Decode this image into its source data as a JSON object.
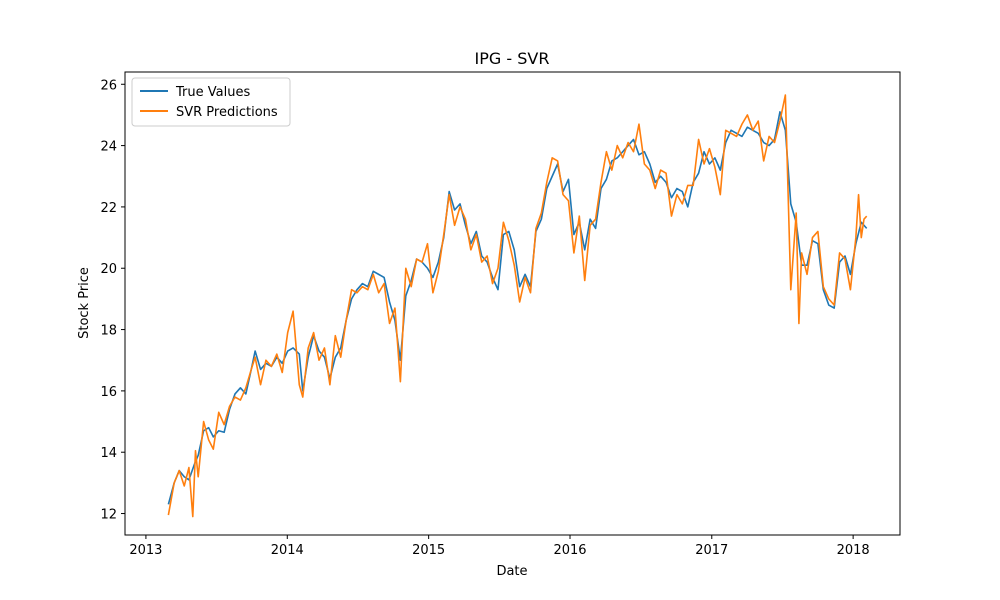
{
  "chart_data": {
    "type": "line",
    "title": "IPG - SVR",
    "xlabel": "Date",
    "ylabel": "Stock Price",
    "x_ticks": [
      "2013",
      "2014",
      "2015",
      "2016",
      "2017",
      "2018"
    ],
    "y_ticks": [
      "12",
      "14",
      "16",
      "18",
      "20",
      "22",
      "24",
      "26"
    ],
    "xlim": [
      "2012-11-08",
      "2018-05-02"
    ],
    "ylim": [
      11.3,
      26.4
    ],
    "grid": false,
    "legend_position": "top-left",
    "colors": {
      "true_values": "#1f77b4",
      "svr_predictions": "#ff7f0e"
    },
    "series": [
      {
        "name": "True Values",
        "points": [
          [
            "2013-02-28",
            12.3
          ],
          [
            "2013-03-15",
            13.0
          ],
          [
            "2013-03-28",
            13.4
          ],
          [
            "2013-04-10",
            13.2
          ],
          [
            "2013-04-22",
            13.1
          ],
          [
            "2013-05-06",
            13.6
          ],
          [
            "2013-05-16",
            13.9
          ],
          [
            "2013-05-30",
            14.7
          ],
          [
            "2013-06-12",
            14.8
          ],
          [
            "2013-06-24",
            14.5
          ],
          [
            "2013-07-08",
            14.7
          ],
          [
            "2013-07-22",
            14.65
          ],
          [
            "2013-08-05",
            15.4
          ],
          [
            "2013-08-19",
            15.9
          ],
          [
            "2013-09-02",
            16.1
          ],
          [
            "2013-09-16",
            15.9
          ],
          [
            "2013-09-30",
            16.7
          ],
          [
            "2013-10-10",
            17.3
          ],
          [
            "2013-10-24",
            16.7
          ],
          [
            "2013-11-07",
            16.9
          ],
          [
            "2013-11-21",
            16.8
          ],
          [
            "2013-12-05",
            17.1
          ],
          [
            "2013-12-19",
            16.9
          ],
          [
            "2014-01-02",
            17.3
          ],
          [
            "2014-01-16",
            17.4
          ],
          [
            "2014-02-01",
            17.2
          ],
          [
            "2014-02-10",
            16.0
          ],
          [
            "2014-02-24",
            17.1
          ],
          [
            "2014-03-10",
            17.8
          ],
          [
            "2014-03-24",
            17.3
          ],
          [
            "2014-04-07",
            17.1
          ],
          [
            "2014-04-21",
            16.4
          ],
          [
            "2014-05-05",
            17.1
          ],
          [
            "2014-05-19",
            17.4
          ],
          [
            "2014-06-02",
            18.3
          ],
          [
            "2014-06-16",
            19.0
          ],
          [
            "2014-06-30",
            19.3
          ],
          [
            "2014-07-14",
            19.5
          ],
          [
            "2014-07-28",
            19.4
          ],
          [
            "2014-08-11",
            19.9
          ],
          [
            "2014-08-25",
            19.8
          ],
          [
            "2014-09-08",
            19.7
          ],
          [
            "2014-09-22",
            18.9
          ],
          [
            "2014-10-06",
            18.3
          ],
          [
            "2014-10-20",
            17.0
          ],
          [
            "2014-11-03",
            19.1
          ],
          [
            "2014-11-17",
            19.6
          ],
          [
            "2014-12-01",
            20.3
          ],
          [
            "2014-12-15",
            20.2
          ],
          [
            "2014-12-29",
            20.0
          ],
          [
            "2015-01-12",
            19.7
          ],
          [
            "2015-01-26",
            20.2
          ],
          [
            "2015-02-09",
            21.0
          ],
          [
            "2015-02-23",
            22.5
          ],
          [
            "2015-03-09",
            21.9
          ],
          [
            "2015-03-23",
            22.1
          ],
          [
            "2015-04-06",
            21.4
          ],
          [
            "2015-04-20",
            20.8
          ],
          [
            "2015-05-04",
            21.2
          ],
          [
            "2015-05-18",
            20.4
          ],
          [
            "2015-06-01",
            20.2
          ],
          [
            "2015-06-15",
            19.7
          ],
          [
            "2015-06-29",
            19.3
          ],
          [
            "2015-07-13",
            21.1
          ],
          [
            "2015-07-27",
            21.2
          ],
          [
            "2015-08-10",
            20.6
          ],
          [
            "2015-08-24",
            19.4
          ],
          [
            "2015-09-07",
            19.8
          ],
          [
            "2015-09-21",
            19.4
          ],
          [
            "2015-10-05",
            21.2
          ],
          [
            "2015-10-19",
            21.6
          ],
          [
            "2015-11-02",
            22.6
          ],
          [
            "2015-11-16",
            23.0
          ],
          [
            "2015-11-30",
            23.4
          ],
          [
            "2015-12-14",
            22.5
          ],
          [
            "2015-12-28",
            22.9
          ],
          [
            "2016-01-11",
            21.1
          ],
          [
            "2016-01-25",
            21.5
          ],
          [
            "2016-02-08",
            20.6
          ],
          [
            "2016-02-22",
            21.6
          ],
          [
            "2016-03-07",
            21.3
          ],
          [
            "2016-03-21",
            22.6
          ],
          [
            "2016-04-04",
            22.9
          ],
          [
            "2016-04-18",
            23.5
          ],
          [
            "2016-05-02",
            23.6
          ],
          [
            "2016-05-16",
            23.8
          ],
          [
            "2016-05-30",
            24.0
          ],
          [
            "2016-06-13",
            24.2
          ],
          [
            "2016-06-27",
            23.7
          ],
          [
            "2016-07-11",
            23.8
          ],
          [
            "2016-07-25",
            23.4
          ],
          [
            "2016-08-08",
            22.8
          ],
          [
            "2016-08-22",
            23.0
          ],
          [
            "2016-09-05",
            22.8
          ],
          [
            "2016-09-19",
            22.3
          ],
          [
            "2016-10-03",
            22.6
          ],
          [
            "2016-10-17",
            22.5
          ],
          [
            "2016-10-31",
            22.0
          ],
          [
            "2016-11-14",
            22.8
          ],
          [
            "2016-11-28",
            23.1
          ],
          [
            "2016-12-12",
            23.8
          ],
          [
            "2016-12-26",
            23.4
          ],
          [
            "2017-01-09",
            23.6
          ],
          [
            "2017-01-23",
            23.2
          ],
          [
            "2017-02-06",
            24.1
          ],
          [
            "2017-02-20",
            24.5
          ],
          [
            "2017-03-06",
            24.4
          ],
          [
            "2017-03-20",
            24.3
          ],
          [
            "2017-04-03",
            24.6
          ],
          [
            "2017-04-17",
            24.5
          ],
          [
            "2017-05-01",
            24.4
          ],
          [
            "2017-05-15",
            24.1
          ],
          [
            "2017-05-29",
            24.0
          ],
          [
            "2017-06-12",
            24.2
          ],
          [
            "2017-06-26",
            25.1
          ],
          [
            "2017-07-10",
            24.5
          ],
          [
            "2017-07-24",
            22.1
          ],
          [
            "2017-08-07",
            21.5
          ],
          [
            "2017-08-21",
            20.1
          ],
          [
            "2017-09-04",
            20.1
          ],
          [
            "2017-09-18",
            20.9
          ],
          [
            "2017-10-02",
            20.8
          ],
          [
            "2017-10-16",
            19.3
          ],
          [
            "2017-10-30",
            18.8
          ],
          [
            "2017-11-13",
            18.7
          ],
          [
            "2017-11-27",
            20.2
          ],
          [
            "2017-12-11",
            20.4
          ],
          [
            "2017-12-25",
            19.8
          ],
          [
            "2018-01-08",
            20.8
          ],
          [
            "2018-01-22",
            21.5
          ],
          [
            "2018-02-05",
            21.3
          ]
        ]
      },
      {
        "name": "SVR Predictions",
        "points": [
          [
            "2013-02-28",
            11.95
          ],
          [
            "2013-03-15",
            13.0
          ],
          [
            "2013-03-28",
            13.4
          ],
          [
            "2013-04-10",
            12.9
          ],
          [
            "2013-04-22",
            13.5
          ],
          [
            "2013-05-02",
            11.9
          ],
          [
            "2013-05-09",
            14.05
          ],
          [
            "2013-05-16",
            13.2
          ],
          [
            "2013-05-30",
            15.0
          ],
          [
            "2013-06-12",
            14.4
          ],
          [
            "2013-06-24",
            14.1
          ],
          [
            "2013-07-08",
            15.3
          ],
          [
            "2013-07-22",
            14.9
          ],
          [
            "2013-08-05",
            15.5
          ],
          [
            "2013-08-19",
            15.8
          ],
          [
            "2013-09-02",
            15.7
          ],
          [
            "2013-09-16",
            16.1
          ],
          [
            "2013-09-30",
            16.7
          ],
          [
            "2013-10-10",
            17.1
          ],
          [
            "2013-10-24",
            16.2
          ],
          [
            "2013-11-07",
            17.0
          ],
          [
            "2013-11-21",
            16.8
          ],
          [
            "2013-12-05",
            17.2
          ],
          [
            "2013-12-19",
            16.6
          ],
          [
            "2014-01-02",
            17.9
          ],
          [
            "2014-01-16",
            18.6
          ],
          [
            "2014-02-01",
            16.2
          ],
          [
            "2014-02-10",
            15.8
          ],
          [
            "2014-02-24",
            17.4
          ],
          [
            "2014-03-10",
            17.9
          ],
          [
            "2014-03-24",
            17.0
          ],
          [
            "2014-04-07",
            17.4
          ],
          [
            "2014-04-21",
            16.2
          ],
          [
            "2014-05-05",
            17.8
          ],
          [
            "2014-05-19",
            17.1
          ],
          [
            "2014-06-02",
            18.3
          ],
          [
            "2014-06-16",
            19.3
          ],
          [
            "2014-06-30",
            19.2
          ],
          [
            "2014-07-14",
            19.4
          ],
          [
            "2014-07-28",
            19.3
          ],
          [
            "2014-08-11",
            19.8
          ],
          [
            "2014-08-25",
            19.2
          ],
          [
            "2014-09-08",
            19.5
          ],
          [
            "2014-09-22",
            18.2
          ],
          [
            "2014-10-06",
            18.7
          ],
          [
            "2014-10-20",
            16.3
          ],
          [
            "2014-11-03",
            20.0
          ],
          [
            "2014-11-17",
            19.4
          ],
          [
            "2014-12-01",
            20.3
          ],
          [
            "2014-12-15",
            20.2
          ],
          [
            "2014-12-29",
            20.8
          ],
          [
            "2015-01-12",
            19.2
          ],
          [
            "2015-01-26",
            19.9
          ],
          [
            "2015-02-09",
            21.1
          ],
          [
            "2015-02-23",
            22.4
          ],
          [
            "2015-03-09",
            21.4
          ],
          [
            "2015-03-23",
            22.0
          ],
          [
            "2015-04-06",
            21.6
          ],
          [
            "2015-04-20",
            20.6
          ],
          [
            "2015-05-04",
            21.1
          ],
          [
            "2015-05-18",
            20.2
          ],
          [
            "2015-06-01",
            20.4
          ],
          [
            "2015-06-15",
            19.5
          ],
          [
            "2015-06-29",
            20.0
          ],
          [
            "2015-07-13",
            21.5
          ],
          [
            "2015-07-27",
            20.9
          ],
          [
            "2015-08-10",
            20.1
          ],
          [
            "2015-08-24",
            18.9
          ],
          [
            "2015-09-07",
            19.7
          ],
          [
            "2015-09-21",
            19.2
          ],
          [
            "2015-10-05",
            21.3
          ],
          [
            "2015-10-19",
            21.8
          ],
          [
            "2015-11-02",
            22.8
          ],
          [
            "2015-11-16",
            23.6
          ],
          [
            "2015-11-30",
            23.5
          ],
          [
            "2015-12-14",
            22.4
          ],
          [
            "2015-12-28",
            22.2
          ],
          [
            "2016-01-11",
            20.5
          ],
          [
            "2016-01-25",
            21.7
          ],
          [
            "2016-02-08",
            19.6
          ],
          [
            "2016-02-22",
            21.4
          ],
          [
            "2016-03-07",
            21.6
          ],
          [
            "2016-03-21",
            22.8
          ],
          [
            "2016-04-04",
            23.8
          ],
          [
            "2016-04-18",
            23.2
          ],
          [
            "2016-05-02",
            24.0
          ],
          [
            "2016-05-16",
            23.6
          ],
          [
            "2016-05-30",
            24.1
          ],
          [
            "2016-06-13",
            23.8
          ],
          [
            "2016-06-27",
            24.7
          ],
          [
            "2016-07-11",
            23.4
          ],
          [
            "2016-07-25",
            23.2
          ],
          [
            "2016-08-08",
            22.6
          ],
          [
            "2016-08-22",
            23.2
          ],
          [
            "2016-09-05",
            23.1
          ],
          [
            "2016-09-19",
            21.7
          ],
          [
            "2016-10-03",
            22.4
          ],
          [
            "2016-10-17",
            22.1
          ],
          [
            "2016-10-31",
            22.7
          ],
          [
            "2016-11-14",
            22.7
          ],
          [
            "2016-11-28",
            24.2
          ],
          [
            "2016-12-12",
            23.4
          ],
          [
            "2016-12-26",
            23.9
          ],
          [
            "2017-01-09",
            23.3
          ],
          [
            "2017-01-23",
            22.4
          ],
          [
            "2017-02-06",
            24.5
          ],
          [
            "2017-02-20",
            24.4
          ],
          [
            "2017-03-06",
            24.3
          ],
          [
            "2017-03-20",
            24.7
          ],
          [
            "2017-04-03",
            25.0
          ],
          [
            "2017-04-17",
            24.5
          ],
          [
            "2017-05-01",
            24.8
          ],
          [
            "2017-05-15",
            23.5
          ],
          [
            "2017-05-29",
            24.3
          ],
          [
            "2017-06-12",
            24.1
          ],
          [
            "2017-06-26",
            24.8
          ],
          [
            "2017-07-10",
            25.65
          ],
          [
            "2017-07-24",
            19.3
          ],
          [
            "2017-08-07",
            21.8
          ],
          [
            "2017-08-14",
            18.2
          ],
          [
            "2017-08-21",
            20.5
          ],
          [
            "2017-09-04",
            19.8
          ],
          [
            "2017-09-18",
            21.0
          ],
          [
            "2017-10-02",
            21.2
          ],
          [
            "2017-10-16",
            19.4
          ],
          [
            "2017-10-30",
            19.0
          ],
          [
            "2017-11-13",
            18.8
          ],
          [
            "2017-11-27",
            20.5
          ],
          [
            "2017-12-11",
            20.3
          ],
          [
            "2017-12-25",
            19.3
          ],
          [
            "2018-01-08",
            21.0
          ],
          [
            "2018-01-15",
            22.4
          ],
          [
            "2018-01-22",
            21.0
          ],
          [
            "2018-01-29",
            21.6
          ],
          [
            "2018-02-05",
            21.7
          ]
        ]
      }
    ]
  }
}
